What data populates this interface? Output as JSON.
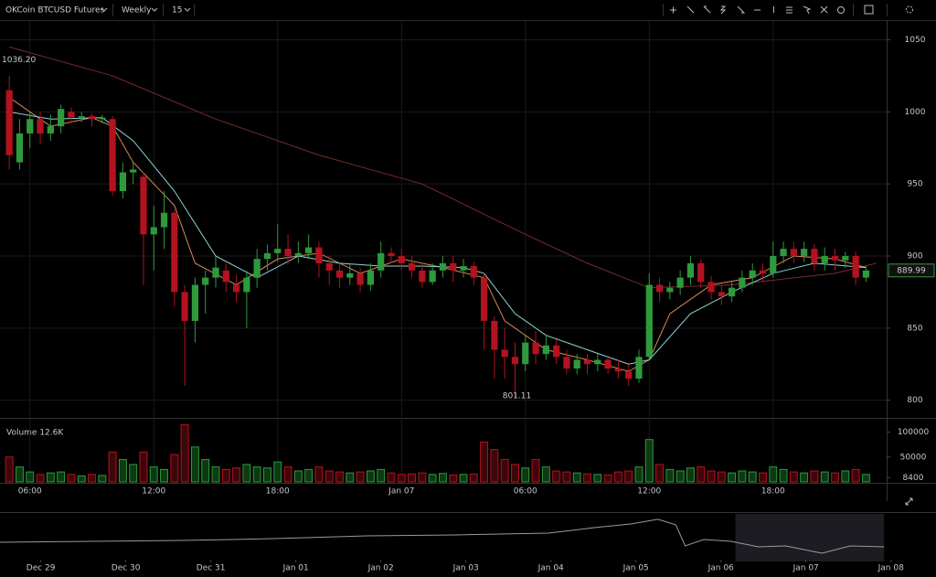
{
  "toolbar": {
    "symbol": "OKCoin BTCUSD Futures",
    "period": "Weekly",
    "interval": "15"
  },
  "chart_data": [
    {
      "type": "candlestick",
      "up_color": "#2e9a3c",
      "down_color": "#b3121f",
      "x": [
        0,
        1,
        2,
        3,
        4,
        5,
        6,
        7,
        8,
        9,
        10,
        11,
        12,
        13,
        14,
        15,
        16,
        17,
        18,
        19,
        20,
        21,
        22,
        23,
        24,
        25,
        26,
        27,
        28,
        29,
        30,
        31,
        32,
        33,
        34,
        35,
        36,
        37,
        38,
        39,
        40,
        41,
        42,
        43,
        44,
        45,
        46,
        47,
        48,
        49,
        50,
        51,
        52,
        53,
        54,
        55,
        56,
        57,
        58,
        59,
        60,
        61,
        62,
        63,
        64,
        65,
        66,
        67,
        68,
        69,
        70,
        71,
        72,
        73,
        74,
        75,
        76,
        77,
        78,
        79,
        80,
        81,
        82,
        83
      ],
      "open": [
        1015,
        965,
        985,
        995,
        985,
        990,
        1000,
        996,
        997,
        995,
        995,
        945,
        958,
        955,
        915,
        920,
        930,
        875,
        855,
        880,
        885,
        890,
        880,
        875,
        885,
        898,
        902,
        905,
        900,
        902,
        906,
        895,
        890,
        885,
        888,
        880,
        890,
        902,
        900,
        895,
        890,
        882,
        890,
        895,
        890,
        893,
        885,
        855,
        835,
        830,
        825,
        840,
        832,
        838,
        830,
        822,
        828,
        825,
        828,
        822,
        820,
        815,
        830,
        880,
        875,
        878,
        885,
        895,
        882,
        875,
        872,
        878,
        885,
        890,
        888,
        900,
        905,
        900,
        905,
        895,
        900,
        897,
        900,
        885
      ],
      "high": [
        1025,
        995,
        1000,
        1000,
        998,
        1005,
        1003,
        1000,
        999,
        998,
        997,
        965,
        965,
        958,
        935,
        945,
        932,
        880,
        885,
        890,
        900,
        895,
        887,
        890,
        905,
        908,
        922,
        915,
        910,
        915,
        910,
        900,
        895,
        895,
        892,
        895,
        910,
        906,
        905,
        900,
        895,
        895,
        900,
        900,
        898,
        896,
        888,
        858,
        850,
        840,
        845,
        848,
        845,
        842,
        835,
        832,
        832,
        832,
        830,
        828,
        825,
        835,
        888,
        885,
        882,
        890,
        900,
        898,
        886,
        880,
        882,
        890,
        895,
        895,
        910,
        910,
        910,
        910,
        908,
        906,
        905,
        903,
        903,
        893
      ],
      "low": [
        960,
        960,
        975,
        978,
        980,
        985,
        992,
        993,
        990,
        992,
        942,
        940,
        950,
        880,
        890,
        905,
        865,
        810,
        840,
        860,
        878,
        875,
        868,
        850,
        878,
        890,
        896,
        894,
        895,
        898,
        885,
        880,
        878,
        880,
        875,
        876,
        885,
        895,
        890,
        885,
        878,
        880,
        885,
        882,
        885,
        880,
        835,
        815,
        815,
        802,
        820,
        825,
        828,
        825,
        818,
        818,
        818,
        820,
        818,
        815,
        810,
        812,
        828,
        868,
        870,
        873,
        880,
        878,
        870,
        866,
        868,
        875,
        880,
        882,
        885,
        895,
        895,
        896,
        890,
        890,
        890,
        892,
        880,
        882
      ],
      "close": [
        970,
        985,
        995,
        985,
        990,
        1002,
        996,
        997,
        995,
        996,
        945,
        958,
        960,
        915,
        920,
        930,
        875,
        855,
        880,
        885,
        892,
        882,
        875,
        885,
        898,
        902,
        905,
        900,
        902,
        906,
        895,
        890,
        885,
        888,
        880,
        890,
        902,
        900,
        895,
        890,
        882,
        890,
        895,
        890,
        893,
        885,
        855,
        835,
        830,
        825,
        840,
        832,
        838,
        830,
        822,
        828,
        825,
        828,
        822,
        820,
        815,
        830,
        880,
        875,
        878,
        885,
        895,
        882,
        875,
        872,
        878,
        885,
        890,
        888,
        900,
        905,
        900,
        905,
        895,
        900,
        897,
        900,
        885,
        890
      ],
      "overlays": [
        {
          "color": "#7a2a2a",
          "x": [
            0,
            10,
            20,
            30,
            40,
            50,
            56,
            62,
            70,
            80,
            84
          ],
          "values": [
            1045,
            1025,
            995,
            970,
            950,
            915,
            895,
            878,
            880,
            888,
            895
          ]
        },
        {
          "color": "#d98a55",
          "x": [
            0,
            4,
            8,
            10,
            12,
            16,
            18,
            22,
            26,
            30,
            34,
            38,
            42,
            46,
            48,
            52,
            56,
            60,
            62,
            64,
            68,
            72,
            76,
            80,
            83
          ],
          "values": [
            1010,
            990,
            996,
            990,
            965,
            935,
            895,
            880,
            898,
            902,
            888,
            898,
            892,
            885,
            855,
            835,
            828,
            820,
            828,
            860,
            880,
            885,
            900,
            898,
            892
          ]
        },
        {
          "color": "#8fd3d6",
          "x": [
            0,
            4,
            9,
            12,
            16,
            20,
            24,
            28,
            32,
            36,
            40,
            44,
            46,
            49,
            52,
            56,
            60,
            62,
            66,
            70,
            74,
            78,
            83
          ],
          "values": [
            1000,
            995,
            996,
            980,
            945,
            900,
            885,
            900,
            895,
            893,
            893,
            892,
            888,
            860,
            845,
            835,
            825,
            828,
            860,
            875,
            888,
            895,
            892
          ]
        }
      ],
      "max_label": {
        "value": 1036.2,
        "label": "1036.20"
      },
      "min_label": {
        "value": 801.11,
        "label": "801.11"
      },
      "last_price": {
        "value": 889.99,
        "label": "889.99"
      },
      "xlim": [
        -0.9,
        85
      ],
      "ylim": [
        789,
        1063
      ],
      "yticks": [
        800,
        850,
        900,
        950,
        1000,
        1050
      ],
      "xticks": [
        {
          "value": 2,
          "label": "06:00"
        },
        {
          "value": 14,
          "label": "12:00"
        },
        {
          "value": 26,
          "label": "18:00"
        },
        {
          "value": 38,
          "label": "Jan 07"
        },
        {
          "value": 50,
          "label": "06:00"
        },
        {
          "value": 62,
          "label": "12:00"
        },
        {
          "value": 74,
          "label": "18:00"
        }
      ],
      "grid": true
    },
    {
      "type": "bar",
      "title": "Volume 12.6K",
      "values": [
        50000,
        30000,
        20000,
        15000,
        18000,
        20000,
        15000,
        12000,
        15000,
        13000,
        60000,
        45000,
        35000,
        60000,
        30000,
        25000,
        55000,
        115000,
        70000,
        45000,
        30000,
        25000,
        28000,
        35000,
        30000,
        28000,
        40000,
        30000,
        22000,
        25000,
        30000,
        22000,
        20000,
        18000,
        20000,
        22000,
        25000,
        18000,
        15000,
        16000,
        18000,
        15000,
        17000,
        14000,
        15000,
        16000,
        80000,
        65000,
        45000,
        35000,
        28000,
        45000,
        30000,
        22000,
        20000,
        18000,
        16000,
        15000,
        14000,
        20000,
        22000,
        30000,
        85000,
        35000,
        25000,
        22000,
        28000,
        30000,
        22000,
        20000,
        18000,
        22000,
        20000,
        18000,
        30000,
        25000,
        20000,
        18000,
        22000,
        20000,
        18000,
        22000,
        25000,
        15000
      ],
      "ylim": [
        0,
        123000
      ],
      "yticks": [
        8400,
        50000,
        100000
      ]
    },
    {
      "type": "line",
      "color": "#9a9a9a",
      "x": [
        -0.48,
        0.59,
        1.67,
        2.74,
        3.82,
        4.89,
        5.97,
        6.51,
        6.94,
        7.26,
        7.47,
        7.58,
        7.8,
        8.12,
        8.44,
        8.76,
        9.19,
        9.52,
        9.92
      ],
      "values": [
        965,
        973,
        980,
        995,
        1018,
        1026,
        1041,
        1086,
        1117,
        1155,
        1109,
        935,
        988,
        973,
        927,
        935,
        874,
        935,
        927
      ],
      "selection": [
        8.17,
        9.92
      ],
      "xlim": [
        -0.48,
        10.53
      ],
      "ylim": [
        700,
        1200
      ],
      "xticks": [
        {
          "value": 0,
          "label": "Dec 29"
        },
        {
          "value": 1,
          "label": "Dec 30"
        },
        {
          "value": 2,
          "label": "Dec 31"
        },
        {
          "value": 3,
          "label": "Jan 01"
        },
        {
          "value": 4,
          "label": "Jan 02"
        },
        {
          "value": 5,
          "label": "Jan 03"
        },
        {
          "value": 6,
          "label": "Jan 04"
        },
        {
          "value": 7,
          "label": "Jan 05"
        },
        {
          "value": 8,
          "label": "Jan 06"
        },
        {
          "value": 9,
          "label": "Jan 07"
        },
        {
          "value": 10,
          "label": "Jan 08"
        }
      ]
    }
  ]
}
